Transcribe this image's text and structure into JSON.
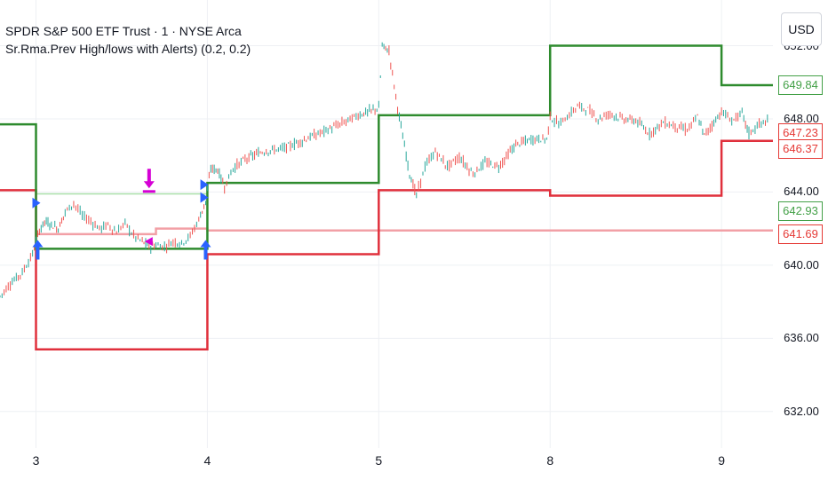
{
  "header": {
    "symbol_line": "SPDR S&P 500 ETF Trust · 1 · NYSE Arca",
    "indicator_line": "Sr.Rma.Prev High/lows with Alerts) (0.2, 0.2)",
    "currency": "USD"
  },
  "colors": {
    "background": "#ffffff",
    "grid": "#eef0f4",
    "high_line": "#2e8b2e",
    "low_line": "#e0303c",
    "prev_high_light": "#a9dfa9",
    "prev_low_light": "#f2a0a6",
    "candle_up": "#26a69a",
    "candle_down": "#ef5350",
    "alert_blue": "#2962ff",
    "alert_magenta": "#d500d5"
  },
  "price_badges": [
    {
      "label": "649.84",
      "color": "#43a047",
      "value": 649.84
    },
    {
      "label": "647.23",
      "color": "#e53935",
      "value": 647.23
    },
    {
      "label": "646.37",
      "color": "#e53935",
      "value": 646.37
    },
    {
      "label": "642.93",
      "color": "#43a047",
      "value": 642.93
    },
    {
      "label": "641.69",
      "color": "#e53935",
      "value": 641.69
    }
  ],
  "chart_data": {
    "type": "line",
    "x_axis": {
      "labels": [
        "3",
        "4",
        "5",
        "8",
        "9"
      ],
      "positions_day_index": [
        1,
        2,
        3,
        4,
        5
      ],
      "range": [
        0.79,
        5.3
      ]
    },
    "y_axis": {
      "labels": [
        "652.00",
        "648.00",
        "644.00",
        "640.00",
        "636.00",
        "632.00"
      ],
      "values": [
        652,
        648,
        644,
        640,
        636,
        632
      ],
      "range": [
        630.0,
        654.5
      ]
    },
    "grid": true,
    "price_series": {
      "name": "SPY 1m",
      "points": [
        [
          0.79,
          638.3
        ],
        [
          0.85,
          639.0
        ],
        [
          0.92,
          639.6
        ],
        [
          0.98,
          640.6
        ],
        [
          1.02,
          641.9
        ],
        [
          1.05,
          642.4
        ],
        [
          1.09,
          642.2
        ],
        [
          1.13,
          642.0
        ],
        [
          1.17,
          642.9
        ],
        [
          1.22,
          643.4
        ],
        [
          1.27,
          642.7
        ],
        [
          1.32,
          642.4
        ],
        [
          1.37,
          642.0
        ],
        [
          1.42,
          642.2
        ],
        [
          1.47,
          641.8
        ],
        [
          1.52,
          642.3
        ],
        [
          1.57,
          641.6
        ],
        [
          1.62,
          641.3
        ],
        [
          1.66,
          641.0
        ],
        [
          1.7,
          641.1
        ],
        [
          1.75,
          641.0
        ],
        [
          1.8,
          641.3
        ],
        [
          1.85,
          641.2
        ],
        [
          1.9,
          641.6
        ],
        [
          1.95,
          642.5
        ],
        [
          1.99,
          643.5
        ],
        [
          2.02,
          645.3
        ],
        [
          2.06,
          645.2
        ],
        [
          2.1,
          644.3
        ],
        [
          2.15,
          645.3
        ],
        [
          2.22,
          645.8
        ],
        [
          2.32,
          646.2
        ],
        [
          2.45,
          646.4
        ],
        [
          2.6,
          647.0
        ],
        [
          2.75,
          647.6
        ],
        [
          2.88,
          648.2
        ],
        [
          3.0,
          648.6
        ],
        [
          3.02,
          652.0
        ],
        [
          3.06,
          651.7
        ],
        [
          3.1,
          649.2
        ],
        [
          3.14,
          647.0
        ],
        [
          3.18,
          645.0
        ],
        [
          3.22,
          643.8
        ],
        [
          3.27,
          645.4
        ],
        [
          3.33,
          646.2
        ],
        [
          3.4,
          645.4
        ],
        [
          3.47,
          645.9
        ],
        [
          3.55,
          645.0
        ],
        [
          3.62,
          645.6
        ],
        [
          3.7,
          645.4
        ],
        [
          3.8,
          646.6
        ],
        [
          3.9,
          646.9
        ],
        [
          3.98,
          646.9
        ],
        [
          4.0,
          648.1
        ],
        [
          4.05,
          647.7
        ],
        [
          4.1,
          648.1
        ],
        [
          4.16,
          648.7
        ],
        [
          4.22,
          648.5
        ],
        [
          4.28,
          648.0
        ],
        [
          4.35,
          648.3
        ],
        [
          4.42,
          648.0
        ],
        [
          4.5,
          647.9
        ],
        [
          4.58,
          647.2
        ],
        [
          4.66,
          647.8
        ],
        [
          4.73,
          647.6
        ],
        [
          4.8,
          647.4
        ],
        [
          4.86,
          648.1
        ],
        [
          4.9,
          647.1
        ],
        [
          5.0,
          648.4
        ],
        [
          5.06,
          647.9
        ],
        [
          5.12,
          648.3
        ],
        [
          5.16,
          647.2
        ],
        [
          5.22,
          647.7
        ],
        [
          5.28,
          647.9
        ]
      ]
    },
    "levels": {
      "prev_high": [
        {
          "from": 0.79,
          "to": 1.0,
          "value": 647.7
        },
        {
          "from": 1.0,
          "to": 2.0,
          "value": 640.9
        },
        {
          "from": 2.0,
          "to": 3.0,
          "value": 644.5
        },
        {
          "from": 3.0,
          "to": 4.0,
          "value": 648.2
        },
        {
          "from": 4.0,
          "to": 5.0,
          "value": 652.0
        },
        {
          "from": 5.0,
          "to": 5.3,
          "value": 649.84
        }
      ],
      "prev_low": [
        {
          "from": 0.79,
          "to": 1.0,
          "value": 644.1
        },
        {
          "from": 1.0,
          "to": 2.0,
          "value": 635.4
        },
        {
          "from": 2.0,
          "to": 3.0,
          "value": 640.6
        },
        {
          "from": 3.0,
          "to": 4.0,
          "value": 644.1
        },
        {
          "from": 4.0,
          "to": 5.0,
          "value": 643.8
        },
        {
          "from": 5.0,
          "to": 5.3,
          "value": 646.8
        }
      ],
      "rma_high": [
        {
          "from": 1.0,
          "to": 2.0,
          "value": 643.9
        }
      ],
      "rma_low": [
        {
          "from": 1.0,
          "to": 1.7,
          "value": 641.7
        },
        {
          "from": 1.7,
          "to": 2.0,
          "value": 642.0
        },
        {
          "from": 2.0,
          "to": 5.3,
          "value": 641.9
        }
      ]
    },
    "alerts": [
      {
        "type": "arrow-up",
        "x": 1.01,
        "y": 640.7
      },
      {
        "type": "arrow-up",
        "x": 1.99,
        "y": 640.7
      },
      {
        "type": "arrow-right",
        "x": 1.0,
        "y": 643.4
      },
      {
        "type": "arrow-right",
        "x": 1.98,
        "y": 643.7
      },
      {
        "type": "arrow-right",
        "x": 1.98,
        "y": 644.4
      },
      {
        "type": "arrow-down-bar",
        "x": 1.66,
        "y": 644.2
      },
      {
        "type": "arrow-left",
        "x": 1.66,
        "y": 641.3
      }
    ]
  }
}
